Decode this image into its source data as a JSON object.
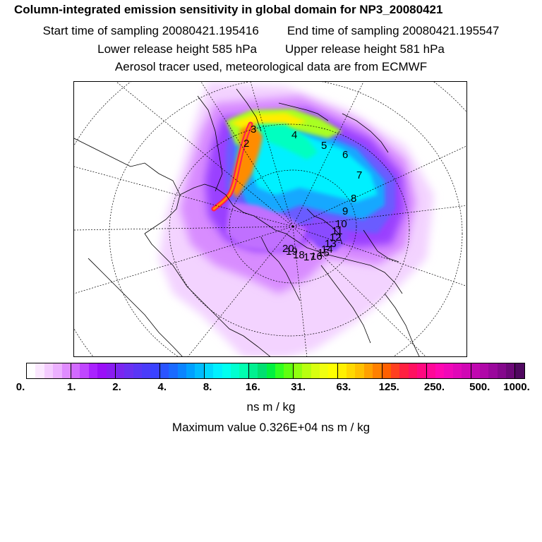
{
  "header": {
    "title": "Column-integrated emission sensitivity in global domain for NP3_20080421",
    "start_time": "Start time of sampling 20080421.195416",
    "end_time": "End time of sampling 20080421.195547",
    "lower_height": "Lower release height  585 hPa",
    "upper_height": "Upper release height  581 hPa",
    "tracer_info": "Aerosol tracer used, meteorological data are from ECMWF"
  },
  "colorbar": {
    "colors": [
      "#ffffff",
      "#fbe8ff",
      "#f4ccff",
      "#ecb0ff",
      "#e08cff",
      "#d26aff",
      "#c046ff",
      "#aa22ff",
      "#9a10f8",
      "#8a1cf2",
      "#7a26f0",
      "#6a30f2",
      "#5a36f6",
      "#4a3cfa",
      "#3a42ff",
      "#2a54ff",
      "#1a6aff",
      "#0a84ff",
      "#00a0ff",
      "#00bcff",
      "#00d8ff",
      "#00f0ff",
      "#00fff0",
      "#00ffd0",
      "#00ffb0",
      "#00f090",
      "#00e070",
      "#00f040",
      "#30ff20",
      "#60ff10",
      "#90ff10",
      "#b8ff10",
      "#d8ff10",
      "#f0ff10",
      "#ffff00",
      "#fff000",
      "#ffd800",
      "#ffc000",
      "#ffa000",
      "#ff8000",
      "#ff6000",
      "#ff4020",
      "#ff2040",
      "#ff1060",
      "#ff0880",
      "#ff0898",
      "#ff08b0",
      "#f008b8",
      "#e008b8",
      "#d008b4",
      "#c008b0",
      "#b008a8",
      "#9a089c",
      "#84088c",
      "#6c0878",
      "#500860"
    ],
    "tick_labels": [
      "0.",
      "1.",
      "2.",
      "4.",
      "8.",
      "16.",
      "31.",
      "63.",
      "125.",
      "250.",
      "500.",
      "1000."
    ],
    "units": "ns m / kg"
  },
  "footer": {
    "max_value": "Maximum value  0.326E+04 ns m / kg"
  },
  "map": {
    "trajectory_labels": [
      "2",
      "3",
      "4",
      "5",
      "6",
      "7",
      "8",
      "9",
      "10",
      "11",
      "12",
      "13",
      "14",
      "15",
      "16",
      "17",
      "18",
      "19",
      "20"
    ]
  }
}
